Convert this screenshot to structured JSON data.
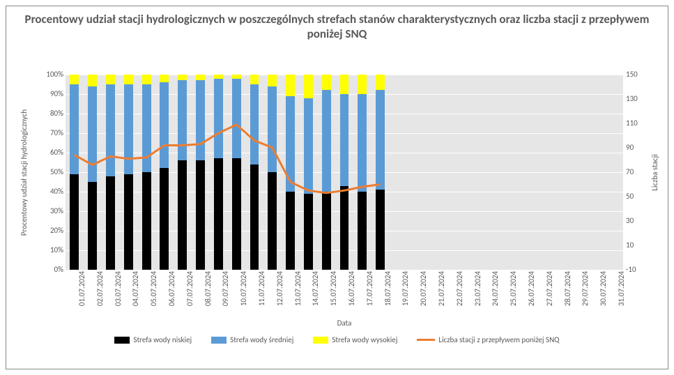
{
  "chart": {
    "title": "Procentowy udział stacji hydrologicznych w poszczególnych strefach stanów charakterystycznych oraz liczba stacji z przepływem poniżej SNQ",
    "title_fontsize": 17,
    "title_color": "#595959",
    "type": "stacked-bar-with-line",
    "background_color": "#ffffff",
    "plot_background_color": "#e6e6e6",
    "grid_color": "#ffffff",
    "border_color": "#888888",
    "series": {
      "low": {
        "label": "Strefa wody niskiej",
        "color": "#000000"
      },
      "medium": {
        "label": "Strefa wody średniej",
        "color": "#5b9bd5"
      },
      "high": {
        "label": "Strefa wody wysokiej",
        "color": "#ffff00"
      },
      "line": {
        "label": "Liczba stacji z przepływem poniżej SNQ",
        "color": "#ed7d31",
        "line_width": 3
      }
    },
    "categories": [
      "01.07.2024",
      "02.07.2024",
      "03.07.2024",
      "04.07.2024",
      "05.07.2024",
      "06.07.2024",
      "07.07.2024",
      "08.07.2024",
      "09.07.2024",
      "10.07.2024",
      "11.07.2024",
      "12.07.2024",
      "13.07.2024",
      "14.07.2024",
      "15.07.2024",
      "16.07.2024",
      "17.07.2024",
      "18.07.2024",
      "19.07.2024",
      "20.07.2024",
      "21.07.2024",
      "22.07.2024",
      "23.07.2024",
      "24.07.2024",
      "25.07.2024",
      "26.07.2024",
      "27.07.2024",
      "28.07.2024",
      "29.07.2024",
      "30.07.2024",
      "31.07.2024"
    ],
    "values_low": [
      49,
      45,
      48,
      49,
      50,
      52,
      56,
      56,
      57,
      57,
      54,
      50,
      40,
      39,
      40,
      43,
      40,
      41,
      null,
      null,
      null,
      null,
      null,
      null,
      null,
      null,
      null,
      null,
      null,
      null,
      null
    ],
    "values_medium": [
      46,
      49,
      47,
      46,
      45,
      44,
      41,
      41,
      41,
      41,
      41,
      44,
      49,
      49,
      52,
      47,
      50,
      51,
      null,
      null,
      null,
      null,
      null,
      null,
      null,
      null,
      null,
      null,
      null,
      null,
      null
    ],
    "values_high": [
      5,
      6,
      5,
      5,
      5,
      4,
      3,
      3,
      2,
      2,
      5,
      6,
      11,
      12,
      8,
      10,
      10,
      8,
      null,
      null,
      null,
      null,
      null,
      null,
      null,
      null,
      null,
      null,
      null,
      null,
      null
    ],
    "values_line": [
      84,
      76,
      83,
      81,
      82,
      92,
      92,
      93,
      102,
      109,
      96,
      90,
      62,
      55,
      53,
      55,
      58,
      60,
      null,
      null,
      null,
      null,
      null,
      null,
      null,
      null,
      null,
      null,
      null,
      null,
      null
    ],
    "y_left": {
      "title": "Procentowy udział stacji hydrologicznych",
      "min": 0,
      "max": 100,
      "step": 10,
      "suffix": "%",
      "label_fontsize": 11,
      "label_color": "#595959"
    },
    "y_right": {
      "title": "Liczba stacji",
      "min": -10,
      "max": 150,
      "step": 20,
      "label_fontsize": 11,
      "label_color": "#595959"
    },
    "x": {
      "title": "Data",
      "label_fontsize": 11,
      "label_color": "#595959",
      "rotation_deg": -90
    },
    "bar_width_ratio": 0.5
  }
}
